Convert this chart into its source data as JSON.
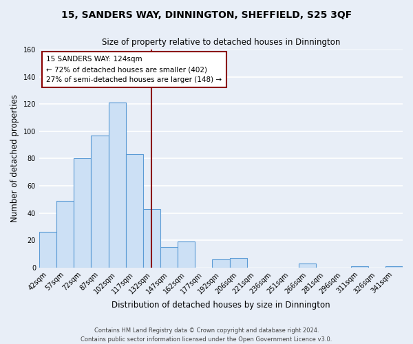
{
  "title": "15, SANDERS WAY, DINNINGTON, SHEFFIELD, S25 3QF",
  "subtitle": "Size of property relative to detached houses in Dinnington",
  "xlabel": "Distribution of detached houses by size in Dinnington",
  "ylabel": "Number of detached properties",
  "bar_labels": [
    "42sqm",
    "57sqm",
    "72sqm",
    "87sqm",
    "102sqm",
    "117sqm",
    "132sqm",
    "147sqm",
    "162sqm",
    "177sqm",
    "192sqm",
    "206sqm",
    "221sqm",
    "236sqm",
    "251sqm",
    "266sqm",
    "281sqm",
    "296sqm",
    "311sqm",
    "326sqm",
    "341sqm"
  ],
  "bar_values": [
    26,
    49,
    80,
    97,
    121,
    83,
    43,
    15,
    19,
    0,
    6,
    7,
    0,
    0,
    0,
    3,
    0,
    0,
    1,
    0,
    1
  ],
  "bar_color": "#cce0f5",
  "bar_edge_color": "#5b9bd5",
  "ylim": [
    0,
    160
  ],
  "yticks": [
    0,
    20,
    40,
    60,
    80,
    100,
    120,
    140,
    160
  ],
  "vline_x": 6.0,
  "vline_color": "#8b0000",
  "annotation_title": "15 SANDERS WAY: 124sqm",
  "annotation_line1": "← 72% of detached houses are smaller (402)",
  "annotation_line2": "27% of semi-detached houses are larger (148) →",
  "annotation_box_color": "#ffffff",
  "annotation_border_color": "#8b0000",
  "footer_line1": "Contains HM Land Registry data © Crown copyright and database right 2024.",
  "footer_line2": "Contains public sector information licensed under the Open Government Licence v3.0.",
  "background_color": "#e8eef7",
  "grid_color": "#d8e2f0",
  "title_fontsize": 10,
  "subtitle_fontsize": 8.5,
  "axis_label_fontsize": 8.5,
  "tick_fontsize": 7,
  "annotation_fontsize": 7.5,
  "footer_fontsize": 6
}
